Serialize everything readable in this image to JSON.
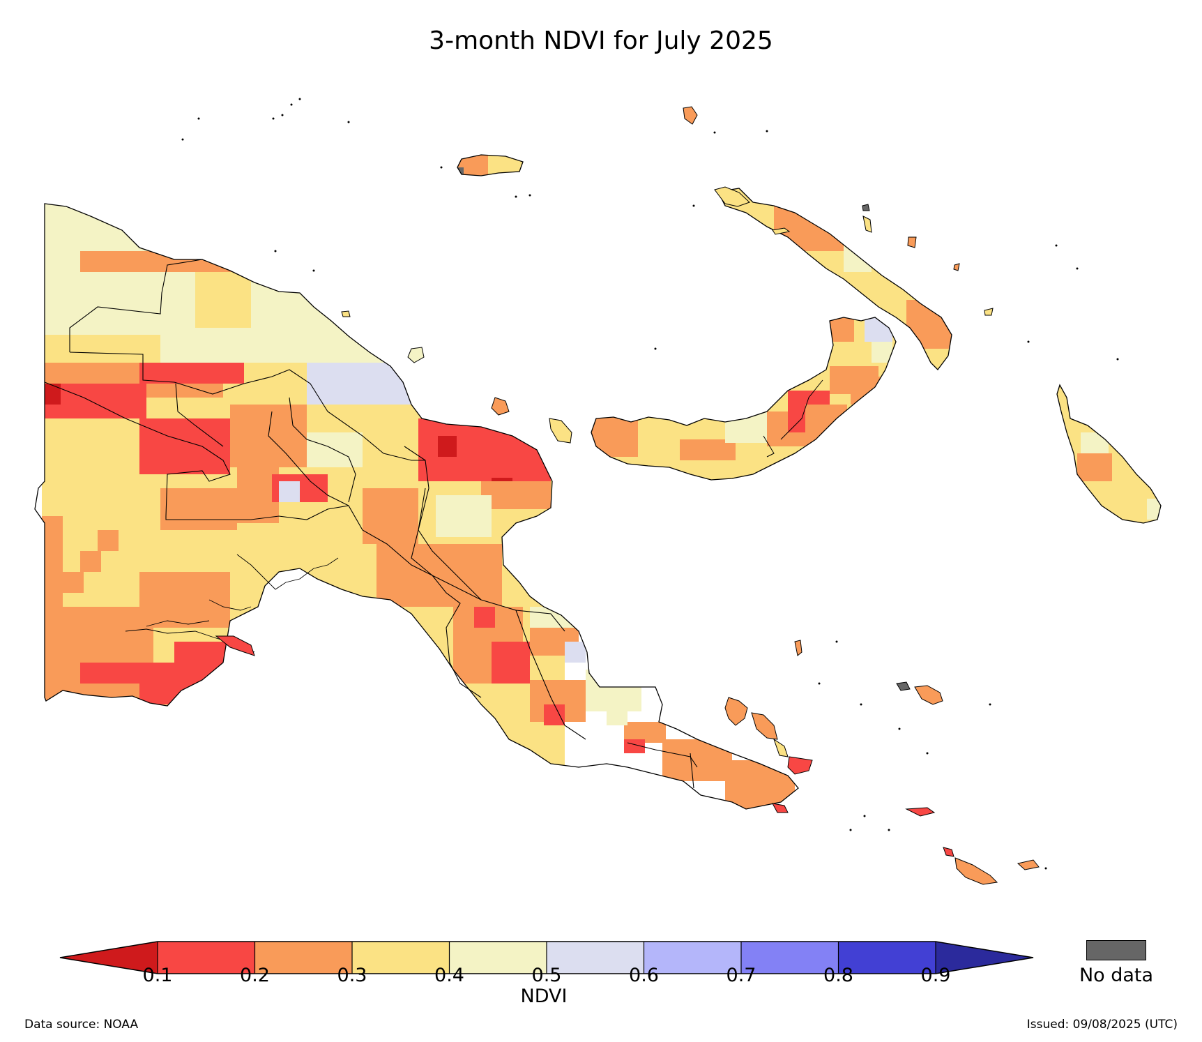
{
  "title": "3-month NDVI for July 2025",
  "colorbar": {
    "label": "NDVI",
    "ticks": [
      "0.1",
      "0.2",
      "0.3",
      "0.4",
      "0.5",
      "0.6",
      "0.7",
      "0.8",
      "0.9"
    ],
    "under_color": "#cf1a1c",
    "over_color": "#2b2a9c",
    "bins": [
      {
        "range": "0.1-0.2",
        "color": "#f84744"
      },
      {
        "range": "0.2-0.3",
        "color": "#f99b59"
      },
      {
        "range": "0.3-0.4",
        "color": "#fbe284"
      },
      {
        "range": "0.4-0.5",
        "color": "#f4f3c5"
      },
      {
        "range": "0.5-0.6",
        "color": "#dcdef0"
      },
      {
        "range": "0.6-0.7",
        "color": "#b4b6fa"
      },
      {
        "range": "0.7-0.8",
        "color": "#8381f5"
      },
      {
        "range": "0.8-0.9",
        "color": "#4240d4"
      }
    ]
  },
  "no_data": {
    "label": "No data",
    "color": "#666666"
  },
  "footer": {
    "source": "Data source: NOAA",
    "issued": "Issued: 09/08/2025 (UTC)"
  }
}
